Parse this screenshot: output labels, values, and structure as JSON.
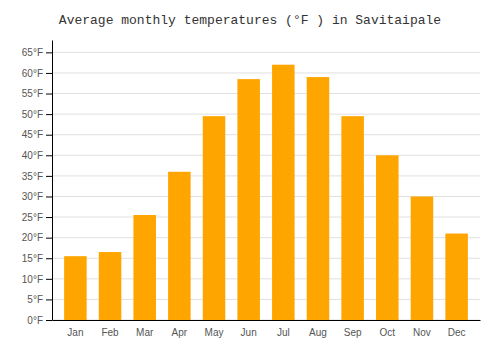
{
  "chart_data": {
    "type": "bar",
    "title": "Average monthly temperatures (°F ) in Savitaipale",
    "categories": [
      "Jan",
      "Feb",
      "Mar",
      "Apr",
      "May",
      "Jun",
      "Jul",
      "Aug",
      "Sep",
      "Oct",
      "Nov",
      "Dec"
    ],
    "values": [
      15.5,
      16.5,
      25.5,
      36.0,
      49.5,
      58.5,
      62.0,
      59.0,
      49.5,
      40.0,
      30.0,
      21.0
    ],
    "color": "#FFA500",
    "ylim": [
      0,
      68
    ],
    "yticks": [
      {
        "value": 0,
        "label": "0°F"
      },
      {
        "value": 5,
        "label": "5°F"
      },
      {
        "value": 10,
        "label": "10°F"
      },
      {
        "value": 15,
        "label": "15°F"
      },
      {
        "value": 20,
        "label": "20°F"
      },
      {
        "value": 25,
        "label": "25°F"
      },
      {
        "value": 30,
        "label": "30°F"
      },
      {
        "value": 35,
        "label": "35°F"
      },
      {
        "value": 40,
        "label": "40°F"
      },
      {
        "value": 45,
        "label": "45°F"
      },
      {
        "value": 50,
        "label": "50°F"
      },
      {
        "value": 55,
        "label": "55°F"
      },
      {
        "value": 60,
        "label": "60°F"
      },
      {
        "value": 65,
        "label": "65°F"
      }
    ],
    "grid": true
  }
}
